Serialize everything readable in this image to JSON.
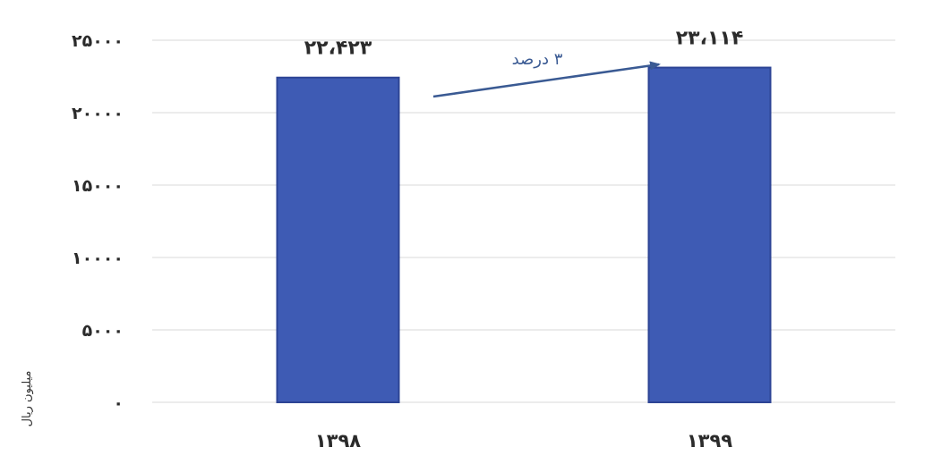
{
  "chart_data": {
    "type": "bar",
    "categories": [
      "۱۳۹۸",
      "۱۳۹۹"
    ],
    "values": [
      22423,
      23114
    ],
    "data_labels": [
      "۲۲،۴۲۳",
      "۲۳،۱۱۴"
    ],
    "ylabel": "میلیون ریال",
    "xlabel": "",
    "ylim": [
      0,
      25000
    ],
    "yticks": [
      0,
      5000,
      10000,
      15000,
      20000,
      25000
    ],
    "ytick_labels": [
      "۰",
      "۵۰۰۰",
      "۱۰۰۰۰",
      "۱۵۰۰۰",
      "۲۰۰۰۰",
      "۲۵۰۰۰"
    ],
    "grid": true,
    "annotation": {
      "text": "۳ درصد",
      "from_category": "۱۳۹۸",
      "to_category": "۱۳۹۹"
    },
    "colors": {
      "bar": "#3e5bb4",
      "bar_border": "#2d4495",
      "arrow": "#3a5a93",
      "grid": "#d9d9d9"
    }
  }
}
